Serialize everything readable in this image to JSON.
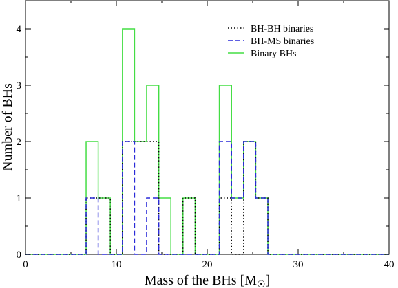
{
  "chart_data": {
    "type": "histogram-step",
    "xlabel": "Mass of the BHs [M",
    "xlabel_unit_symbol": "☉",
    "xlabel_close": "]",
    "ylabel": "Number of BHs",
    "xlim": [
      0,
      40
    ],
    "ylim": [
      0,
      4.5
    ],
    "xticks": [
      "0",
      "10",
      "20",
      "30",
      "40"
    ],
    "yticks": [
      "0",
      "1",
      "2",
      "3",
      "4"
    ],
    "grid": false,
    "legend_position": "top-right",
    "series": [
      {
        "name": "BH-BH binaries",
        "color": "#000000",
        "style": "dotted",
        "steps": [
          {
            "x0": 6.67,
            "x1": 9.33,
            "y": 1
          },
          {
            "x0": 10.67,
            "x1": 14.67,
            "y": 2
          },
          {
            "x0": 17.33,
            "x1": 18.67,
            "y": 1
          },
          {
            "x0": 21.33,
            "x1": 22.67,
            "y": 1
          },
          {
            "x0": 24.0,
            "x1": 25.33,
            "y": 2
          },
          {
            "x0": 25.33,
            "x1": 26.67,
            "y": 1
          }
        ]
      },
      {
        "name": "BH-MS binaries",
        "color": "#2a2ad8",
        "style": "dashed",
        "steps": [
          {
            "x0": 6.67,
            "x1": 8.0,
            "y": 1
          },
          {
            "x0": 10.67,
            "x1": 12.0,
            "y": 2
          },
          {
            "x0": 13.33,
            "x1": 14.67,
            "y": 1
          },
          {
            "x0": 21.33,
            "x1": 22.67,
            "y": 2
          },
          {
            "x0": 22.67,
            "x1": 24.0,
            "y": 1
          },
          {
            "x0": 24.0,
            "x1": 25.33,
            "y": 2
          },
          {
            "x0": 25.33,
            "x1": 26.67,
            "y": 1
          }
        ]
      },
      {
        "name": "Binary BHs",
        "color": "#44dd44",
        "style": "solid",
        "steps": [
          {
            "x0": 6.67,
            "x1": 8.0,
            "y": 2
          },
          {
            "x0": 8.0,
            "x1": 9.33,
            "y": 1
          },
          {
            "x0": 10.67,
            "x1": 12.0,
            "y": 4
          },
          {
            "x0": 12.0,
            "x1": 13.33,
            "y": 2
          },
          {
            "x0": 13.33,
            "x1": 14.67,
            "y": 3
          },
          {
            "x0": 14.67,
            "x1": 16.0,
            "y": 1
          },
          {
            "x0": 17.33,
            "x1": 18.67,
            "y": 1
          },
          {
            "x0": 21.33,
            "x1": 22.67,
            "y": 3
          },
          {
            "x0": 22.67,
            "x1": 24.0,
            "y": 1
          },
          {
            "x0": 24.0,
            "x1": 25.33,
            "y": 2
          },
          {
            "x0": 25.33,
            "x1": 26.67,
            "y": 1
          }
        ]
      }
    ]
  }
}
